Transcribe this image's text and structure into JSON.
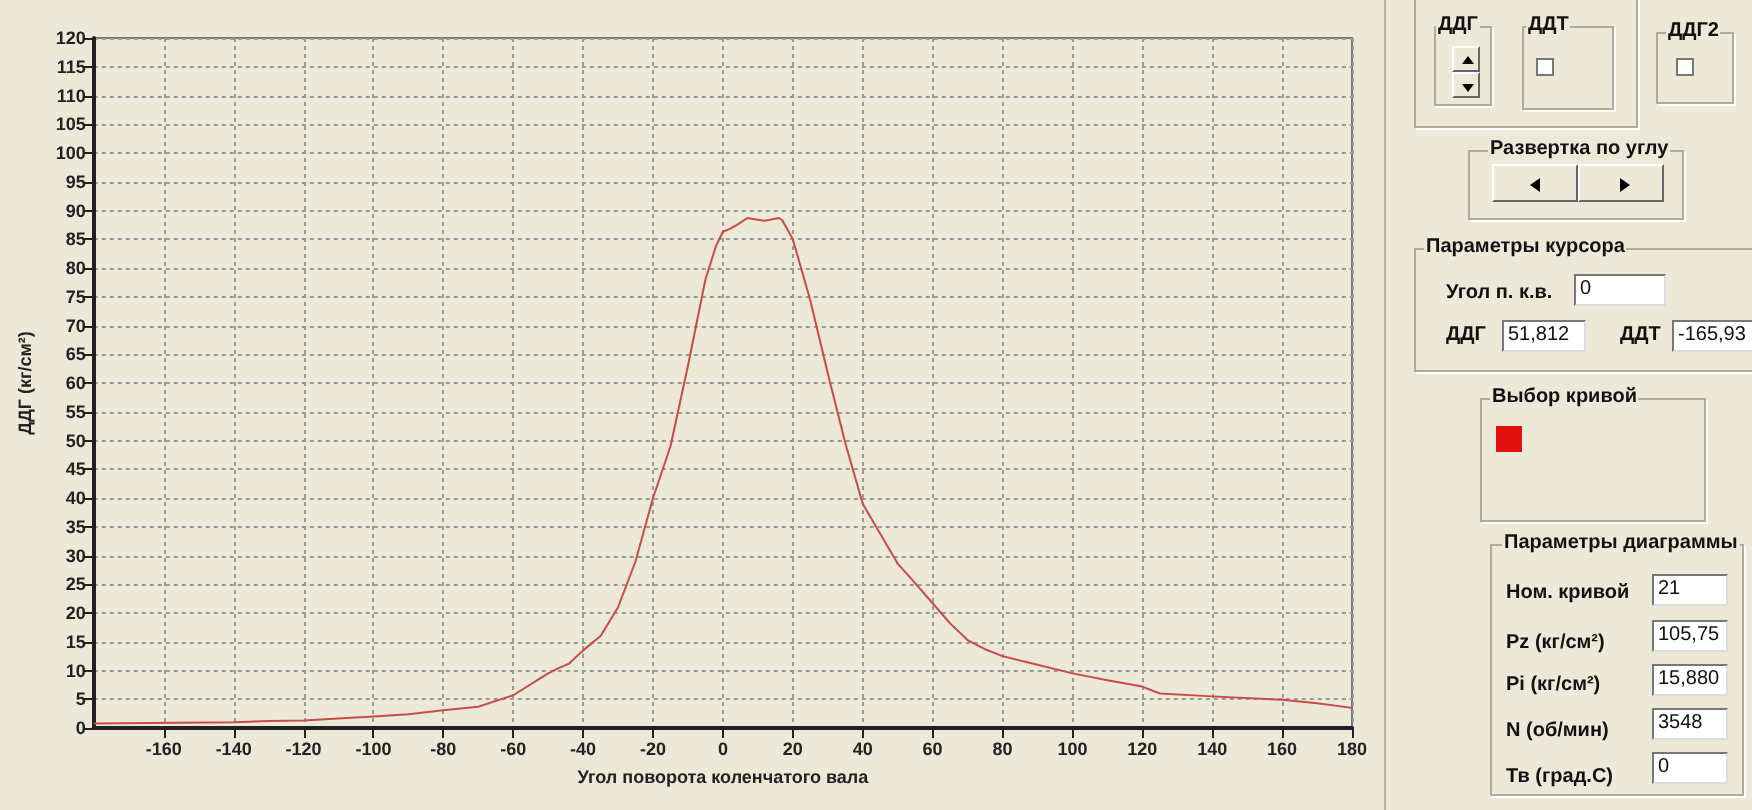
{
  "chart_data": [
    {
      "type": "line",
      "xlabel": "Угол поворота коленчатого вала",
      "ylabel": "ДДГ (кг/см²)",
      "xlim": [
        -180,
        180
      ],
      "xticks": [
        -160,
        -140,
        -120,
        -100,
        -80,
        -60,
        -40,
        -20,
        0,
        20,
        40,
        60,
        80,
        100,
        120,
        140,
        160,
        180
      ],
      "ylim": [
        0,
        120
      ],
      "yticks": [
        0,
        5,
        10,
        15,
        20,
        25,
        30,
        35,
        40,
        45,
        50,
        55,
        60,
        65,
        70,
        75,
        80,
        85,
        90,
        95,
        100,
        105,
        110,
        115,
        120
      ],
      "grid": true,
      "marker": "none",
      "series": [
        {
          "color": "#cc4a4a",
          "x": [
            -180,
            -140,
            -130,
            -120,
            -100,
            -90,
            -80,
            -70,
            -60,
            -50,
            -47,
            -44,
            -40,
            -35,
            -30,
            -25,
            -20,
            -15,
            -10,
            -5,
            -2,
            0,
            2,
            4,
            7,
            10,
            12,
            16,
            17,
            20,
            25,
            30,
            35,
            40,
            45,
            50,
            55,
            60,
            65,
            70,
            75,
            80,
            90,
            100,
            110,
            120,
            125,
            140,
            160,
            170,
            180
          ],
          "values": [
            0.8,
            1.0,
            1.2,
            1.3,
            2.0,
            2.4,
            3.1,
            3.7,
            5.7,
            9.5,
            10.4,
            11.2,
            13.5,
            16,
            21,
            29,
            40,
            49,
            63,
            78,
            83.8,
            86.3,
            86.8,
            87.5,
            88.7,
            88.4,
            88.2,
            88.7,
            88.3,
            85,
            74.4,
            61.7,
            49.6,
            39,
            33.8,
            28.6,
            25.2,
            21.7,
            18.2,
            15.3,
            13.7,
            12.5,
            11,
            9.5,
            8.3,
            7.2,
            6,
            5.5,
            4.9,
            4.3,
            3.5
          ]
        }
      ]
    },
    {
      "type": "other",
      "annotations": [
        "ДДГ",
        "ДДТ",
        "ДДГ2",
        "Развертка по углу",
        "Параметры курсора",
        "Угол п. к.в.",
        "0",
        "ДДГ",
        "51,812",
        "ДДТ",
        "-165,93",
        "Выбор кривой",
        "Параметры диаграммы",
        "Ном. кривой",
        "21",
        "Pz (кг/см²)",
        "105,75",
        "Pi (кг/см²)",
        "15,880",
        "N (об/мин)",
        "3548",
        "Тв (град.С)",
        "0"
      ]
    }
  ]
}
